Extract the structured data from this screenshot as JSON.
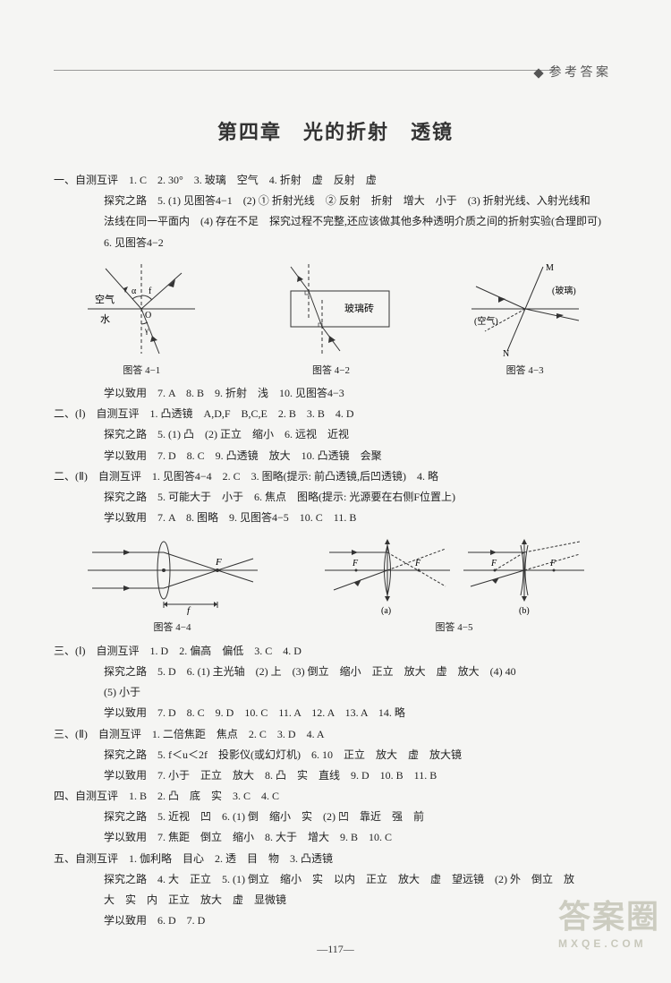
{
  "header": {
    "label": "参 考 答 案"
  },
  "title": "第四章　光的折射　透镜",
  "lines": [
    {
      "cls": "row",
      "text": "一、自测互评　1. C　2. 30°　3. 玻璃　空气　4. 折射　虚　反射　虚"
    },
    {
      "cls": "row indent1",
      "text": "探究之路　5. (1) 见图答4−1　(2) ① 折射光线　② 反射　折射　增大　小于　(3) 折射光线、入射光线和"
    },
    {
      "cls": "row indent1",
      "text": "法线在同一平面内　(4) 存在不足　探究过程不完整,还应该做其他多种透明介质之间的折射实验(合理即可)"
    },
    {
      "cls": "row indent1",
      "text": "6. 见图答4−2"
    }
  ],
  "diagramsA": {
    "captions": [
      "图答 4−1",
      "图答 4−2",
      "图答 4−3"
    ],
    "d1": {
      "labels": {
        "air": "空气",
        "water": "水",
        "alpha": "α",
        "f": "f",
        "O": "O"
      }
    },
    "d2": {
      "label": "玻璃砖"
    },
    "d3": {
      "labels": {
        "M": "M",
        "N": "N",
        "glass": "(玻璃)",
        "air": "(空气)"
      }
    }
  },
  "lines2": [
    {
      "cls": "row indent1",
      "text": "学以致用　7. A　8. B　9. 折射　浅　10. 见图答4−3"
    },
    {
      "cls": "row",
      "text": "二、(Ⅰ)　自测互评　1. 凸透镜　A,D,F　B,C,E　2. B　3. B　4. D"
    },
    {
      "cls": "row indent2",
      "text": "探究之路　5. (1) 凸　(2) 正立　缩小　6. 远视　近视"
    },
    {
      "cls": "row indent2",
      "text": "学以致用　7. D　8. C　9. 凸透镜　放大　10. 凸透镜　会聚"
    },
    {
      "cls": "row",
      "text": "二、(Ⅱ)　自测互评　1. 见图答4−4　2. C　3. 图略(提示: 前凸透镜,后凹透镜)　4. 略"
    },
    {
      "cls": "row indent2",
      "text": "探究之路　5. 可能大于　小于　6. 焦点　图略(提示: 光源要在右侧F位置上)"
    },
    {
      "cls": "row indent2",
      "text": "学以致用　7. A　8. 图略　9. 见图答4−5　10. C　11. B"
    }
  ],
  "diagramsB": {
    "captions": [
      "图答 4−4",
      "图答 4−5"
    ],
    "d4": {
      "labels": {
        "f": "f",
        "F": "F"
      }
    },
    "d5": {
      "labels": {
        "F": "F",
        "a": "(a)",
        "b": "(b)"
      }
    }
  },
  "lines3": [
    {
      "cls": "row",
      "text": "三、(Ⅰ)　自测互评　1. D　2. 偏高　偏低　3. C　4. D"
    },
    {
      "cls": "row indent2",
      "text": "探究之路　5. D　6. (1) 主光轴　(2) 上　(3) 倒立　缩小　正立　放大　虚　放大　(4) 40"
    },
    {
      "cls": "row indent2",
      "text": "(5) 小于"
    },
    {
      "cls": "row indent2",
      "text": "学以致用　7. D　8. C　9. D　10. C　11. A　12. A　13. A　14. 略"
    },
    {
      "cls": "row",
      "text": "三、(Ⅱ)　自测互评　1. 二倍焦距　焦点　2. C　3. D　4. A"
    },
    {
      "cls": "row indent2",
      "text": "探究之路　5. f＜u＜2f　投影仪(或幻灯机)　6. 10　正立　放大　虚　放大镜"
    },
    {
      "cls": "row indent2",
      "text": "学以致用　7. 小于　正立　放大　8. 凸　实　直线　9. D　10. B　11. B"
    },
    {
      "cls": "row",
      "text": "四、自测互评　1. B　2. 凸　底　实　3. C　4. C"
    },
    {
      "cls": "row indent1",
      "text": "探究之路　5. 近视　凹　6. (1) 倒　缩小　实　(2) 凹　靠近　强　前"
    },
    {
      "cls": "row indent1",
      "text": "学以致用　7. 焦距　倒立　缩小　8. 大于　增大　9. B　10. C"
    },
    {
      "cls": "row",
      "text": "五、自测互评　1. 伽利略　目心　2. 透　目　物　3. 凸透镜"
    },
    {
      "cls": "row indent1",
      "text": "探究之路　4. 大　正立　5. (1) 倒立　缩小　实　以内　正立　放大　虚　望远镜　(2) 外　倒立　放"
    },
    {
      "cls": "row indent1",
      "text": "大　实　内　正立　放大　虚　显微镜"
    },
    {
      "cls": "row indent1",
      "text": "学以致用　6. D　7. D"
    }
  ],
  "pageNum": "—117—",
  "watermark": {
    "main": "答案圈",
    "sub": "MXQE.COM"
  },
  "style": {
    "stroke": "#333",
    "dash": "4,3"
  }
}
